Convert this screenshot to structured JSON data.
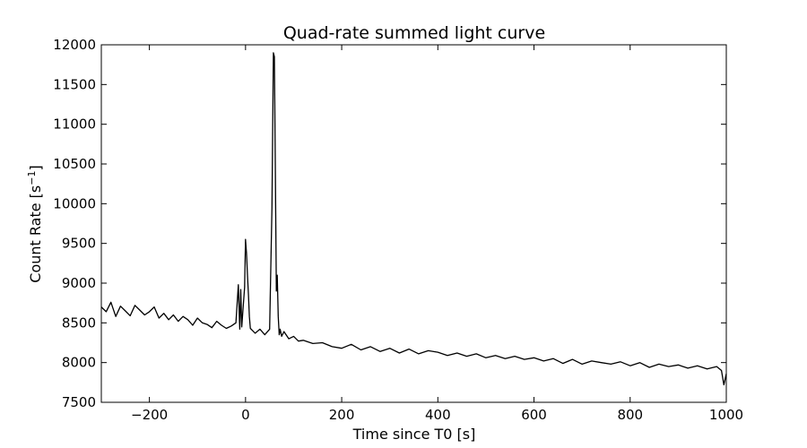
{
  "chart_data": {
    "type": "line",
    "title": "Quad-rate summed light curve",
    "xlabel": "Time since T0 [s]",
    "ylabel_main": "Count Rate [s",
    "ylabel_sup": "−1",
    "ylabel_end": "]",
    "xlim": [
      -300,
      1000
    ],
    "ylim": [
      7500,
      12000
    ],
    "xticks": [
      -200,
      0,
      200,
      400,
      600,
      800,
      1000
    ],
    "xtick_labels": [
      "−200",
      "0",
      "200",
      "400",
      "600",
      "800",
      "1000"
    ],
    "yticks": [
      7500,
      8000,
      8500,
      9000,
      9500,
      10000,
      10500,
      11000,
      11500,
      12000
    ],
    "ytick_labels": [
      "7500",
      "8000",
      "8500",
      "9000",
      "9500",
      "10000",
      "10500",
      "11000",
      "11500",
      "12000"
    ],
    "grid": false,
    "line_color": "#000000",
    "series": [
      {
        "x": [
          -300,
          -290,
          -280,
          -270,
          -260,
          -250,
          -240,
          -230,
          -220,
          -210,
          -200,
          -190,
          -180,
          -170,
          -160,
          -150,
          -140,
          -130,
          -120,
          -110,
          -100,
          -90,
          -80,
          -70,
          -60,
          -50,
          -40,
          -30,
          -20,
          -15,
          -12,
          -10,
          -8,
          -5,
          -2,
          0,
          2,
          4,
          6,
          8,
          10,
          15,
          20,
          30,
          40,
          50,
          55,
          58,
          60,
          62,
          64,
          66,
          68,
          70,
          72,
          75,
          80,
          90,
          100,
          110,
          120,
          140,
          160,
          180,
          200,
          220,
          240,
          260,
          280,
          300,
          320,
          340,
          360,
          380,
          400,
          420,
          440,
          460,
          480,
          500,
          520,
          540,
          560,
          580,
          600,
          620,
          640,
          660,
          680,
          700,
          720,
          740,
          760,
          780,
          800,
          820,
          840,
          860,
          880,
          900,
          920,
          940,
          960,
          980,
          990,
          995,
          1000
        ],
        "y": [
          8700,
          8640,
          8760,
          8580,
          8710,
          8650,
          8590,
          8720,
          8660,
          8600,
          8640,
          8700,
          8560,
          8620,
          8540,
          8600,
          8520,
          8580,
          8540,
          8470,
          8560,
          8500,
          8480,
          8440,
          8520,
          8470,
          8430,
          8460,
          8500,
          8980,
          8420,
          8920,
          8450,
          8700,
          8950,
          9550,
          9380,
          9100,
          8850,
          8580,
          8430,
          8400,
          8370,
          8420,
          8350,
          8420,
          9950,
          11900,
          11850,
          10400,
          8900,
          9100,
          8580,
          8350,
          8420,
          8330,
          8390,
          8300,
          8330,
          8270,
          8280,
          8240,
          8250,
          8200,
          8180,
          8230,
          8160,
          8200,
          8140,
          8180,
          8120,
          8170,
          8110,
          8150,
          8130,
          8090,
          8120,
          8080,
          8110,
          8060,
          8090,
          8050,
          8080,
          8040,
          8060,
          8020,
          8050,
          7990,
          8040,
          7980,
          8020,
          8000,
          7980,
          8010,
          7960,
          8000,
          7940,
          7980,
          7950,
          7970,
          7930,
          7960,
          7920,
          7950,
          7900,
          7720,
          7860
        ]
      }
    ]
  }
}
